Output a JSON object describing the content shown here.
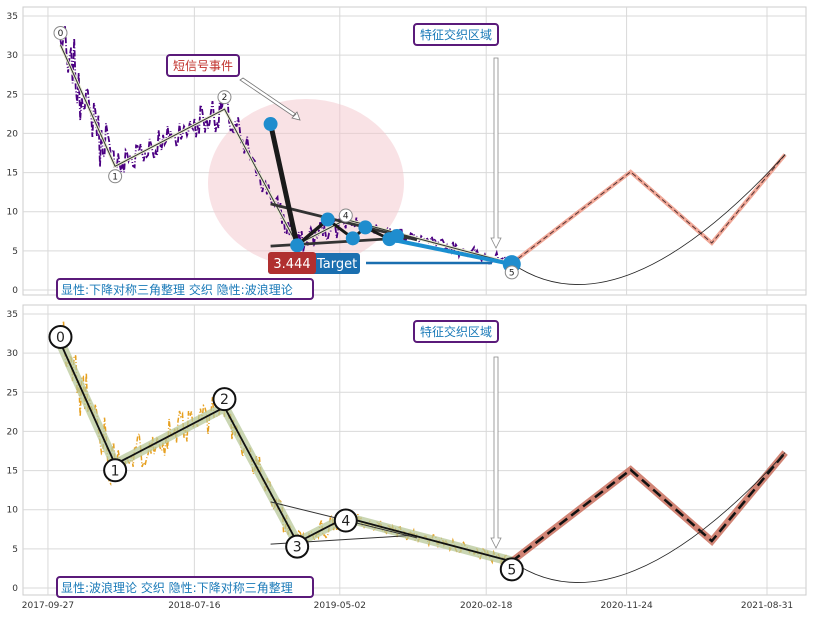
{
  "chart_data": [
    {
      "type": "line",
      "panel": "top",
      "ylim": [
        0,
        36
      ],
      "yticks": [
        0,
        5,
        10,
        15,
        20,
        25,
        30,
        35
      ],
      "xticks": [
        "2017-09-27",
        "2018-07-16",
        "2019-05-02",
        "2020-02-18",
        "2020-11-24",
        "2021-08-31"
      ],
      "grid": true,
      "price_color": "#4b0082",
      "wave_points": [
        {
          "label": "0",
          "date": "2017-10-22",
          "value": 31.3
        },
        {
          "label": "1",
          "date": "2018-02-08",
          "value": 15.8
        },
        {
          "label": "2",
          "date": "2018-09-14",
          "value": 23.1
        },
        {
          "label": "",
          "date": "2019-02-06",
          "value": 5.8
        },
        {
          "label": "4",
          "date": "2019-05-14",
          "value": 9.0
        },
        {
          "label": "5",
          "date": "2020-04-09",
          "value": 3.4
        }
      ],
      "projection": [
        {
          "date": "2020-04-09",
          "value": 3.4
        },
        {
          "date": "2020-12-02",
          "value": 15.1
        },
        {
          "date": "2021-05-13",
          "value": 6.0
        },
        {
          "date": "2021-10-06",
          "value": 17.3
        }
      ],
      "triangle": {
        "upper": [
          {
            "date": "2018-12-15",
            "value": 11.0
          },
          {
            "date": "2019-10-03",
            "value": 6.4
          }
        ],
        "lower": [
          {
            "date": "2018-12-15",
            "value": 5.6
          },
          {
            "date": "2019-09-18",
            "value": 6.7
          }
        ]
      },
      "signal_dots": [
        {
          "date": "2018-12-15",
          "value": 21.2
        },
        {
          "date": "2019-02-06",
          "value": 5.7
        },
        {
          "date": "2019-04-08",
          "value": 9.0
        },
        {
          "date": "2019-05-28",
          "value": 6.6
        },
        {
          "date": "2019-06-22",
          "value": 8.0
        },
        {
          "date": "2019-08-09",
          "value": 6.5
        },
        {
          "date": "2019-08-24",
          "value": 6.9
        },
        {
          "date": "2020-04-09",
          "value": 3.3
        }
      ],
      "annotations": {
        "short_signal": "短信号事件",
        "intersect_zone": "特征交织区域",
        "target_value": "3.444",
        "target_label": "Target",
        "footer": "显性:下降对称三角整理 交织 隐性:波浪理论"
      }
    },
    {
      "type": "line",
      "panel": "bottom",
      "ylim": [
        0,
        36
      ],
      "yticks": [
        0,
        5,
        10,
        15,
        20,
        25,
        30,
        35
      ],
      "xticks": [
        "2017-09-27",
        "2018-07-16",
        "2019-05-02",
        "2020-02-18",
        "2020-11-24",
        "2021-08-31"
      ],
      "grid": true,
      "price_color": "#e6a020",
      "wave_points": [
        {
          "label": "0",
          "date": "2017-10-22",
          "value": 31.3
        },
        {
          "label": "1",
          "date": "2018-02-08",
          "value": 15.8
        },
        {
          "label": "2",
          "date": "2018-09-14",
          "value": 23.1
        },
        {
          "label": "3",
          "date": "2019-02-06",
          "value": 5.8
        },
        {
          "label": "4",
          "date": "2019-05-14",
          "value": 9.0
        },
        {
          "label": "5",
          "date": "2020-04-09",
          "value": 3.4
        }
      ],
      "projection": [
        {
          "date": "2020-04-09",
          "value": 3.4
        },
        {
          "date": "2020-12-02",
          "value": 15.1
        },
        {
          "date": "2021-05-13",
          "value": 6.0
        },
        {
          "date": "2021-10-06",
          "value": 17.3
        }
      ],
      "triangle": {
        "upper": [
          {
            "date": "2018-12-15",
            "value": 11.0
          },
          {
            "date": "2019-10-03",
            "value": 6.4
          }
        ],
        "lower": [
          {
            "date": "2018-12-15",
            "value": 5.6
          },
          {
            "date": "2019-09-18",
            "value": 6.7
          }
        ]
      },
      "annotations": {
        "intersect_zone": "特征交织区域",
        "footer": "显性:波浪理论 交织 隐性:下降对称三角整理"
      }
    }
  ]
}
